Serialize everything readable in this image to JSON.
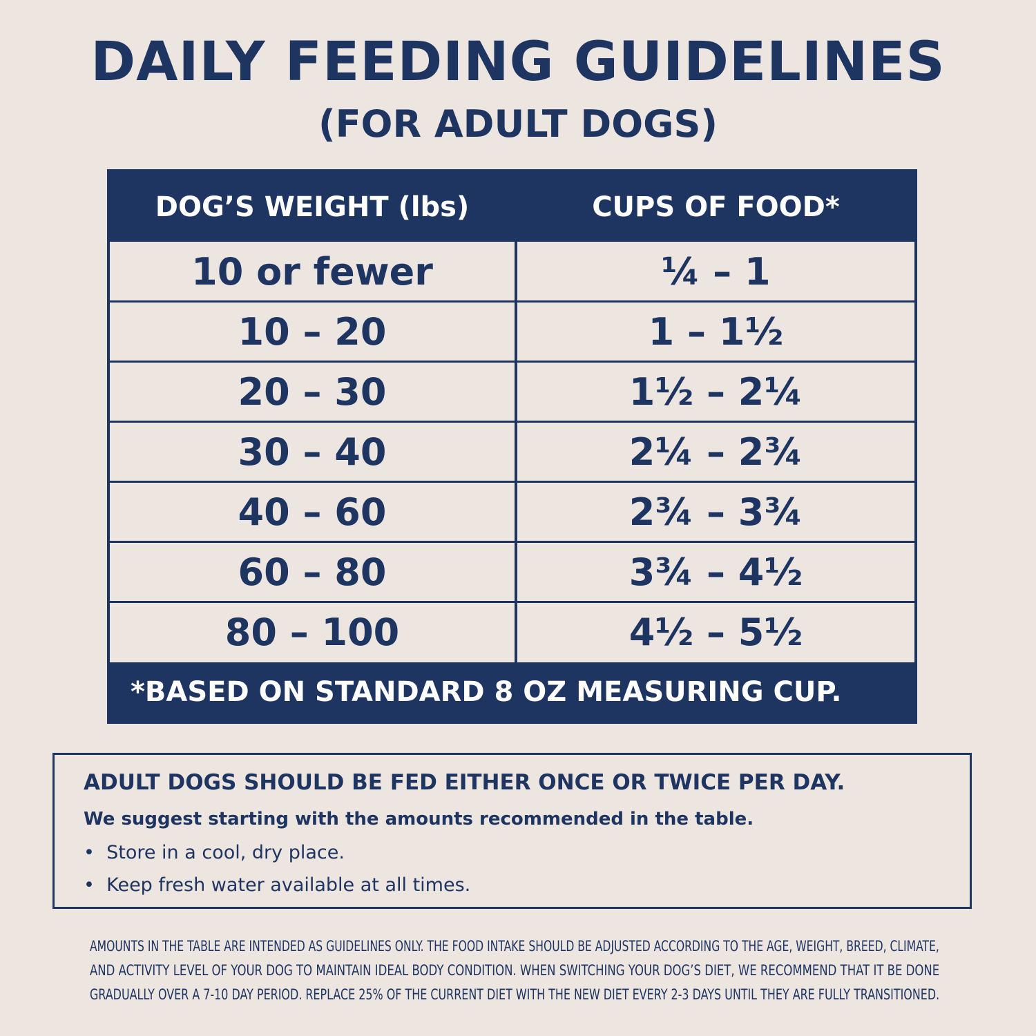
{
  "header": {
    "title": "DAILY FEEDING GUIDELINES",
    "subtitle": "(FOR ADULT DOGS)"
  },
  "table": {
    "columns": [
      "DOG’S WEIGHT (lbs)",
      "CUPS OF FOOD*"
    ],
    "rows": [
      [
        "10 or fewer",
        "¼ – 1"
      ],
      [
        "10 – 20",
        "1 – 1½"
      ],
      [
        "20 – 30",
        "1½ – 2¼"
      ],
      [
        "30 – 40",
        "2¼ – 2¾"
      ],
      [
        "40 – 60",
        "2¾ – 3¾"
      ],
      [
        "60 – 80",
        "3¾ – 4½"
      ],
      [
        "80 – 100",
        "4½ – 5½"
      ]
    ],
    "footnote": "*BASED ON STANDARD 8 OZ MEASURING CUP."
  },
  "notes": {
    "heading": "ADULT DOGS SHOULD BE FED EITHER ONCE OR TWICE PER DAY.",
    "subheading": "We suggest starting with the amounts recommended in the table.",
    "bullets": [
      "Store in a cool, dry place.",
      "Keep fresh water available at all times."
    ]
  },
  "disclaimer": [
    "AMOUNTS IN THE TABLE ARE INTENDED AS GUIDELINES ONLY. THE FOOD INTAKE SHOULD BE ADJUSTED ACCORDING TO THE AGE, WEIGHT, BREED, CLIMATE,",
    "AND ACTIVITY LEVEL OF YOUR DOG TO MAINTAIN IDEAL BODY CONDITION. WHEN SWITCHING YOUR DOG’S DIET, WE RECOMMEND THAT IT BE DONE",
    "GRADUALLY OVER A 7-10 DAY PERIOD. REPLACE 25% OF THE CURRENT DIET WITH THE NEW DIET EVERY 2-3 DAYS UNTIL THEY ARE FULLY TRANSITIONED."
  ]
}
